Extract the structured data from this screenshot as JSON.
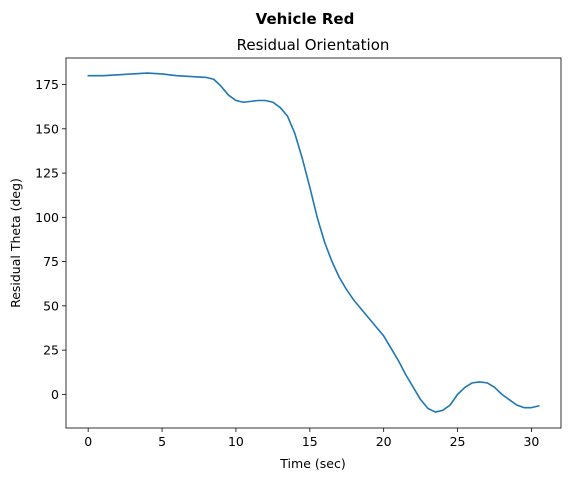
{
  "chart_data": {
    "type": "line",
    "suptitle": "Vehicle Red",
    "title": "Residual Orientation",
    "xlabel": "Time (sec)",
    "ylabel": "Residual Theta (deg)",
    "xlim": [
      -1.5,
      32.0
    ],
    "ylim": [
      -19.0,
      190.0
    ],
    "xticks": [
      0,
      5,
      10,
      15,
      20,
      25,
      30
    ],
    "yticks": [
      0,
      25,
      50,
      75,
      100,
      125,
      150,
      175
    ],
    "grid": false,
    "series": [
      {
        "color": "#1f77b4",
        "x": [
          0,
          1,
          2,
          3,
          4,
          5,
          6,
          7,
          8,
          8.5,
          9,
          9.5,
          10,
          10.5,
          11,
          11.5,
          12,
          12.5,
          13,
          13.5,
          14,
          14.5,
          15,
          15.5,
          16,
          16.5,
          17,
          17.5,
          18,
          18.5,
          19,
          19.5,
          20,
          20.5,
          21,
          21.5,
          22,
          22.5,
          23,
          23.5,
          24,
          24.5,
          25,
          25.5,
          26,
          26.5,
          27,
          27.5,
          28,
          28.5,
          29,
          29.5,
          30,
          30.5
        ],
        "y": [
          180,
          180,
          180.5,
          181,
          181.5,
          181,
          180,
          179.5,
          179,
          178,
          174,
          169,
          166,
          165,
          165.5,
          166,
          166,
          165,
          162,
          157,
          147,
          133,
          117,
          100,
          86,
          75,
          66,
          59,
          53,
          48,
          43,
          38,
          33,
          26,
          19,
          11,
          4,
          -3,
          -8,
          -10,
          -9,
          -6,
          0,
          4,
          6.5,
          7,
          6.5,
          4,
          0,
          -3,
          -6,
          -7.5,
          -7.5,
          -6.5
        ]
      }
    ]
  }
}
